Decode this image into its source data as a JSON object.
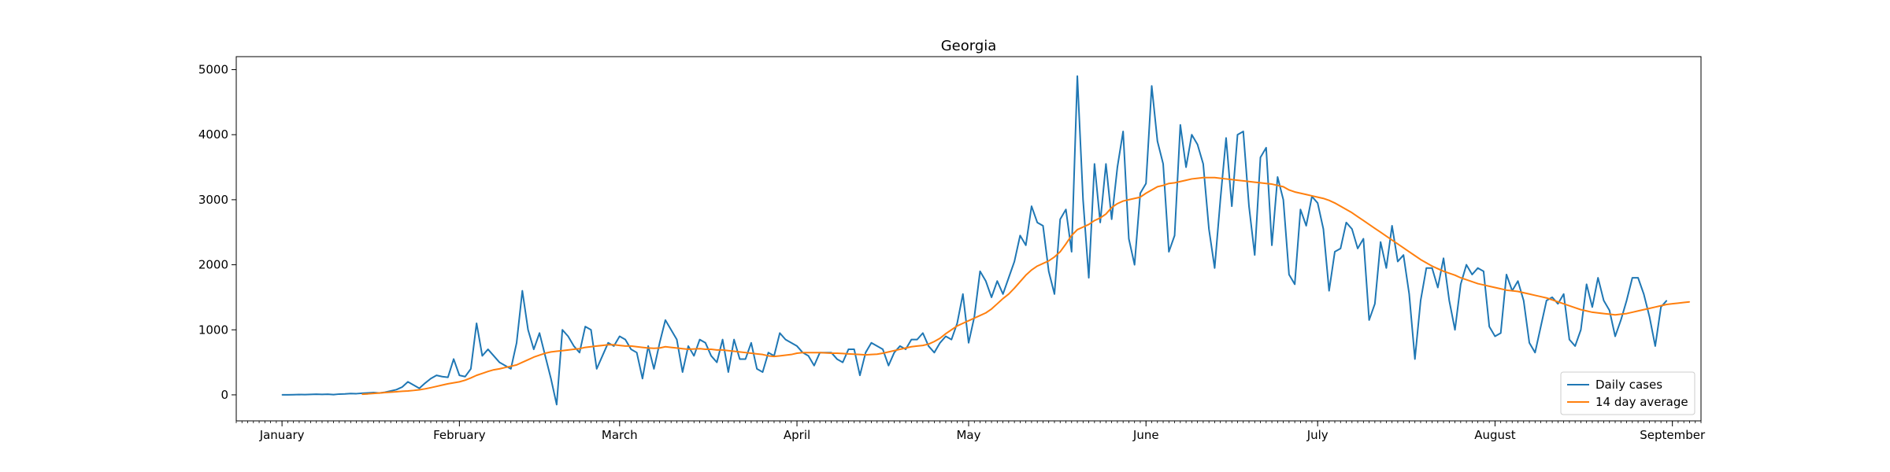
{
  "chart_data": {
    "type": "line",
    "title": "Georgia",
    "xlabel": "",
    "ylabel": "",
    "x_tick_labels": [
      "January",
      "February",
      "March",
      "April",
      "May",
      "June",
      "July",
      "August",
      "September"
    ],
    "x_start": "2021-01-01",
    "xlim": [
      "2020-12-24",
      "2021-09-06"
    ],
    "ylim": [
      -400,
      5200
    ],
    "y_ticks": [
      0,
      1000,
      2000,
      3000,
      4000,
      5000
    ],
    "grid": false,
    "legend_position": "lower-right",
    "colors": {
      "daily": "#1f77b4",
      "average": "#ff7f0e"
    },
    "series": [
      {
        "name": "Daily cases",
        "values": [
          0,
          0,
          2,
          5,
          3,
          7,
          10,
          6,
          9,
          4,
          12,
          15,
          20,
          18,
          25,
          30,
          35,
          28,
          40,
          60,
          80,
          120,
          200,
          150,
          100,
          180,
          250,
          300,
          280,
          270,
          550,
          300,
          280,
          400,
          1100,
          600,
          700,
          600,
          500,
          450,
          400,
          800,
          1600,
          1000,
          700,
          950,
          600,
          250,
          -150,
          1000,
          900,
          750,
          650,
          1050,
          1000,
          400,
          600,
          800,
          750,
          900,
          850,
          700,
          650,
          250,
          750,
          400,
          800,
          1150,
          1000,
          850,
          350,
          750,
          600,
          850,
          800,
          600,
          500,
          850,
          350,
          850,
          550,
          550,
          800,
          400,
          350,
          650,
          600,
          950,
          850,
          800,
          750,
          650,
          600,
          450,
          650,
          650,
          650,
          550,
          500,
          700,
          700,
          300,
          650,
          800,
          750,
          700,
          450,
          650,
          750,
          700,
          850,
          850,
          950,
          750,
          650,
          800,
          900,
          850,
          1100,
          1550,
          800,
          1200,
          1900,
          1750,
          1500,
          1750,
          1550,
          1800,
          2050,
          2450,
          2300,
          2900,
          2650,
          2600,
          1900,
          1550,
          2700,
          2850,
          2200,
          4900,
          3000,
          1800,
          3550,
          2650,
          3550,
          2700,
          3500,
          4050,
          2400,
          2000,
          3100,
          3250,
          4750,
          3900,
          3550,
          2200,
          2450,
          4150,
          3500,
          4000,
          3850,
          3550,
          2550,
          1950,
          3000,
          3950,
          2900,
          4000,
          4050,
          2900,
          2150,
          3650,
          3800,
          2300,
          3350,
          3000,
          1850,
          1700,
          2850,
          2600,
          3050,
          2950,
          2550,
          1600,
          2200,
          2250,
          2650,
          2550,
          2250,
          2400,
          1150,
          1400,
          2350,
          1950,
          2600,
          2050,
          2150,
          1550,
          550,
          1450,
          1950,
          1950,
          1650,
          2100,
          1450,
          1000,
          1700,
          2000,
          1850,
          1950,
          1900,
          1050,
          900,
          950,
          1850,
          1600,
          1750,
          1450,
          800,
          650,
          1050,
          1450,
          1500,
          1400,
          1550,
          850,
          750,
          1000,
          1700,
          1350,
          1800,
          1450,
          1300,
          900,
          1150,
          1450,
          1800,
          1800,
          1550,
          1200,
          750,
          1350,
          1450
        ],
        "start_offset_days": 0
      },
      {
        "name": "14 day average",
        "values": [
          10,
          15,
          22,
          28,
          35,
          42,
          48,
          55,
          60,
          68,
          78,
          92,
          110,
          130,
          150,
          170,
          185,
          200,
          225,
          260,
          300,
          330,
          360,
          385,
          400,
          420,
          440,
          460,
          500,
          540,
          580,
          610,
          640,
          660,
          670,
          680,
          690,
          700,
          710,
          730,
          740,
          750,
          760,
          770,
          770,
          760,
          750,
          750,
          740,
          730,
          720,
          715,
          720,
          740,
          730,
          720,
          710,
          700,
          705,
          710,
          700,
          700,
          690,
          690,
          680,
          670,
          660,
          650,
          640,
          630,
          620,
          600,
          590,
          600,
          610,
          620,
          640,
          650,
          650,
          650,
          650,
          645,
          640,
          640,
          635,
          630,
          625,
          620,
          615,
          620,
          625,
          640,
          660,
          680,
          700,
          720,
          740,
          750,
          760,
          780,
          820,
          870,
          940,
          1000,
          1060,
          1100,
          1140,
          1180,
          1220,
          1260,
          1320,
          1400,
          1480,
          1550,
          1640,
          1740,
          1840,
          1920,
          1980,
          2020,
          2060,
          2120,
          2200,
          2320,
          2450,
          2540,
          2580,
          2620,
          2680,
          2720,
          2780,
          2880,
          2940,
          2980,
          3000,
          3020,
          3040,
          3100,
          3150,
          3200,
          3220,
          3250,
          3260,
          3280,
          3300,
          3320,
          3330,
          3340,
          3340,
          3340,
          3330,
          3320,
          3310,
          3300,
          3290,
          3280,
          3270,
          3260,
          3250,
          3240,
          3220,
          3200,
          3150,
          3120,
          3100,
          3080,
          3060,
          3040,
          3020,
          2990,
          2950,
          2900,
          2850,
          2800,
          2740,
          2680,
          2620,
          2560,
          2500,
          2440,
          2380,
          2320,
          2260,
          2200,
          2140,
          2080,
          2030,
          1980,
          1940,
          1900,
          1870,
          1840,
          1800,
          1770,
          1740,
          1710,
          1690,
          1670,
          1650,
          1630,
          1610,
          1600,
          1590,
          1570,
          1550,
          1530,
          1510,
          1490,
          1460,
          1430,
          1400,
          1370,
          1340,
          1310,
          1290,
          1270,
          1260,
          1250,
          1240,
          1230,
          1240,
          1250,
          1270,
          1290,
          1310,
          1330,
          1350,
          1370,
          1390,
          1400,
          1410,
          1420,
          1430
        ],
        "start_offset_days": 14
      }
    ]
  }
}
